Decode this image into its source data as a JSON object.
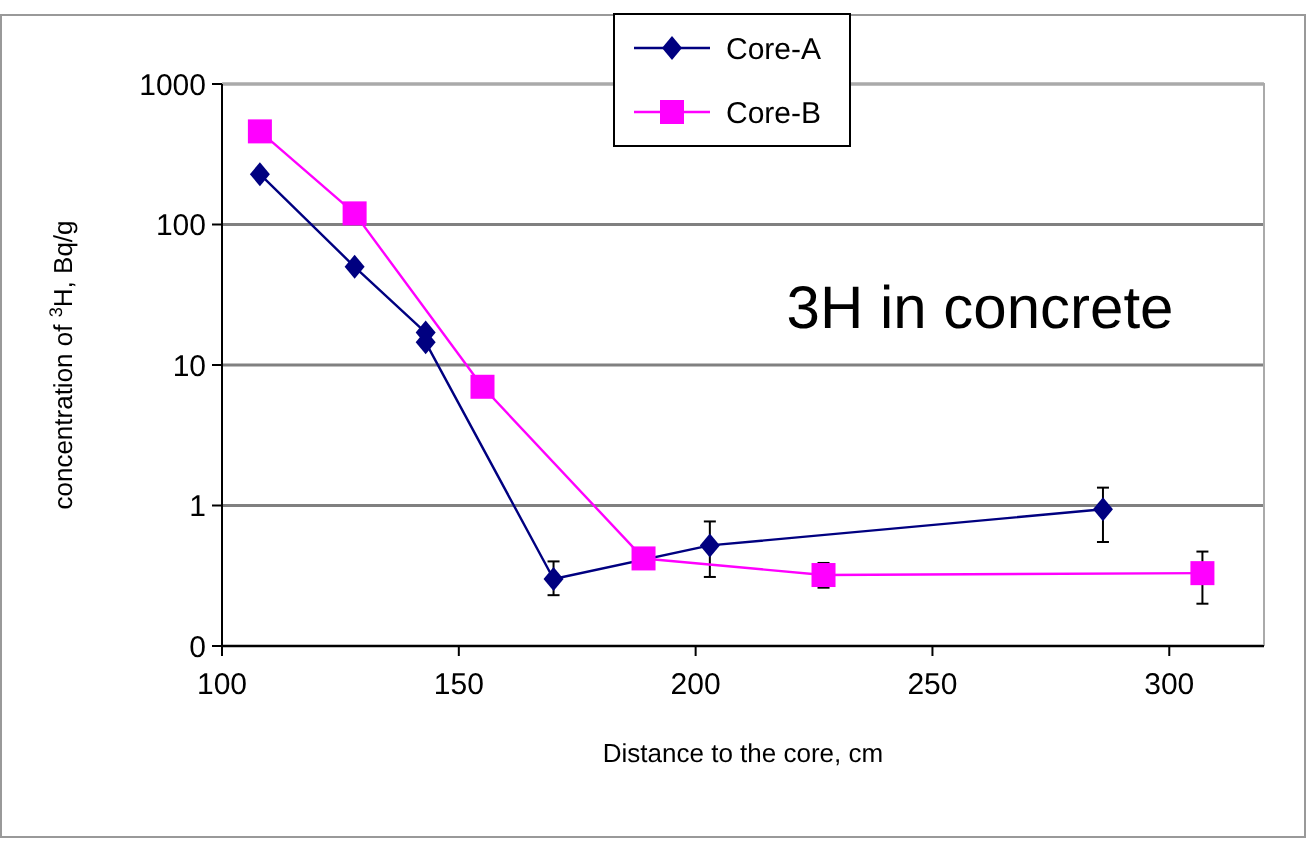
{
  "chart_data": {
    "type": "line",
    "xlabel": "Distance to the core, cm",
    "ylabel": "concentration of $^{3}$H, Bq/g",
    "annotations": [
      "3H in concrete"
    ],
    "log": true,
    "grid": "y",
    "legend": "top",
    "line_style": "solid",
    "xlim": [
      100,
      320
    ],
    "xticks": [
      100,
      150,
      200,
      250,
      300
    ],
    "ylim": [
      0.1,
      1000
    ],
    "yticks": [
      {
        "value": 0.1,
        "label": "0"
      },
      1,
      10,
      100,
      1000
    ],
    "series": [
      {
        "name": "Core-A",
        "color": "#000080",
        "marker": "diamond",
        "x": [
          108,
          128,
          143,
          143,
          170,
          203,
          286
        ],
        "values": [
          228,
          50,
          17,
          14.5,
          0.3,
          0.52,
          0.94
        ],
        "errors": [
          null,
          null,
          null,
          null,
          [
            0.23,
            0.4
          ],
          [
            0.31,
            0.77
          ],
          [
            0.55,
            1.34
          ]
        ]
      },
      {
        "name": "Core-B",
        "color": "#ff00ff",
        "marker": "square",
        "x": [
          108,
          128,
          155,
          189,
          227,
          307
        ],
        "values": [
          460,
          120,
          7,
          0.42,
          0.32,
          0.33
        ],
        "errors": [
          null,
          null,
          null,
          null,
          [
            0.26,
            0.39
          ],
          [
            0.2,
            0.47
          ]
        ]
      }
    ]
  }
}
